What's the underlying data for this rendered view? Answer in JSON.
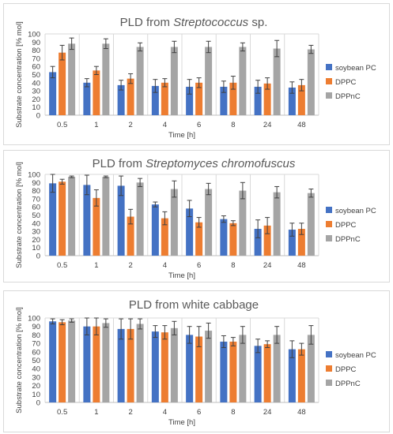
{
  "charts": [
    {
      "title_parts": [
        {
          "text": "PLD from ",
          "italic": false
        },
        {
          "text": "Streptococcus",
          "italic": true
        },
        {
          "text": " sp.",
          "italic": false
        }
      ],
      "chart_data": {
        "type": "bar",
        "title": "PLD from Streptococcus sp.",
        "xlabel": "Time [h]",
        "ylabel": "Substrate concentration [% mol]",
        "ylim": [
          0,
          100
        ],
        "yticks": [
          0,
          10,
          20,
          30,
          40,
          50,
          60,
          70,
          80,
          90,
          100
        ],
        "categories": [
          "0.5",
          "1",
          "2",
          "4",
          "6",
          "8",
          "24",
          "48"
        ],
        "series": [
          {
            "name": "soybean PC",
            "color": "#4472c4",
            "values": [
              53,
              40,
              37,
              36,
              35,
              35,
              35,
              34
            ],
            "errors": [
              7,
              5,
              6,
              8,
              9,
              7,
              8,
              7
            ]
          },
          {
            "name": "DPPC",
            "color": "#ed7d31",
            "values": [
              77,
              55,
              45,
              40,
              40,
              40,
              39,
              37
            ],
            "errors": [
              9,
              5,
              6,
              5,
              6,
              8,
              7,
              7
            ]
          },
          {
            "name": "DPPnC",
            "color": "#a5a5a5",
            "values": [
              88,
              88,
              84,
              84,
              84,
              84,
              82,
              81
            ],
            "errors": [
              7,
              6,
              5,
              7,
              7,
              5,
              10,
              5
            ]
          }
        ],
        "grid": "vertical",
        "legend": "right"
      }
    },
    {
      "title_parts": [
        {
          "text": "PLD from ",
          "italic": false
        },
        {
          "text": "Streptomyces chromofuscus",
          "italic": true
        }
      ],
      "chart_data": {
        "type": "bar",
        "title": "PLD from Streptomyces chromofuscus",
        "xlabel": "Time [h]",
        "ylabel": "Substrate concentration [% mol]",
        "ylim": [
          0,
          100
        ],
        "yticks": [
          0,
          10,
          20,
          30,
          40,
          50,
          60,
          70,
          80,
          90,
          100
        ],
        "categories": [
          "0.5",
          "1",
          "2",
          "4",
          "6",
          "8",
          "24",
          "48"
        ],
        "series": [
          {
            "name": "soybean PC",
            "color": "#4472c4",
            "values": [
              89,
              87,
              86,
              63,
              58,
              45,
              33,
              32
            ],
            "errors": [
              11,
              12,
              12,
              3,
              10,
              4,
              11,
              8
            ]
          },
          {
            "name": "DPPC",
            "color": "#ed7d31",
            "values": [
              91,
              71,
              48,
              46,
              41,
              40,
              37,
              33
            ],
            "errors": [
              3,
              10,
              9,
              8,
              6,
              3,
              10,
              7
            ]
          },
          {
            "name": "DPPnC",
            "color": "#a5a5a5",
            "values": [
              97,
              97,
              90,
              82,
              82,
              80,
              78,
              77
            ],
            "errors": [
              1,
              1,
              5,
              10,
              7,
              10,
              7,
              5
            ]
          }
        ],
        "grid": "vertical",
        "legend": "right"
      }
    },
    {
      "title_parts": [
        {
          "text": "PLD from white cabbage",
          "italic": false
        }
      ],
      "chart_data": {
        "type": "bar",
        "title": "PLD from white cabbage",
        "xlabel": "Time [h]",
        "ylabel": "Substrate concentration [% mol]",
        "ylim": [
          0,
          100
        ],
        "yticks": [
          0,
          10,
          20,
          30,
          40,
          50,
          60,
          70,
          80,
          90,
          100
        ],
        "categories": [
          "0.5",
          "1",
          "2",
          "4",
          "6",
          "8",
          "24",
          "48"
        ],
        "series": [
          {
            "name": "soybean PC",
            "color": "#4472c4",
            "values": [
              96,
              90,
              87,
              84,
              80,
              72,
              67,
              63
            ],
            "errors": [
              3,
              10,
              12,
              7,
              10,
              7,
              8,
              10
            ]
          },
          {
            "name": "DPPC",
            "color": "#ed7d31",
            "values": [
              95,
              90,
              87,
              83,
              78,
              72,
              69,
              63
            ],
            "errors": [
              3,
              10,
              12,
              8,
              12,
              5,
              4,
              7
            ]
          },
          {
            "name": "DPPnC",
            "color": "#a5a5a5",
            "values": [
              97,
              94,
              93,
              88,
              85,
              80,
              80,
              80
            ],
            "errors": [
              2,
              5,
              6,
              8,
              9,
              10,
              10,
              11
            ]
          }
        ],
        "grid": "vertical",
        "legend": "right"
      }
    }
  ]
}
